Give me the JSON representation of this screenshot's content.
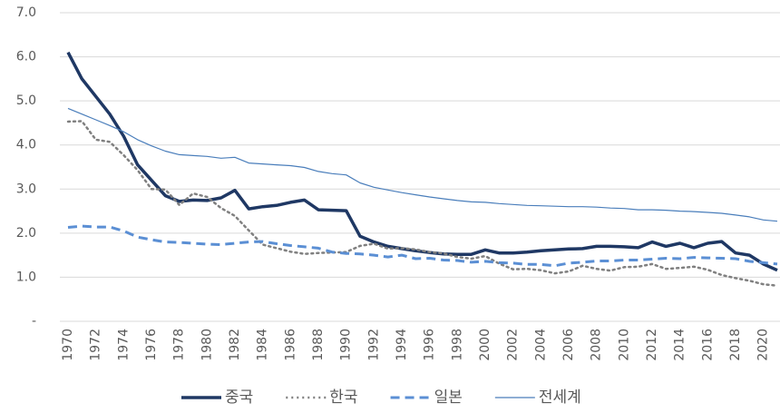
{
  "chart_data": {
    "type": "line",
    "x": [
      1970,
      1971,
      1972,
      1973,
      1974,
      1975,
      1976,
      1977,
      1978,
      1979,
      1980,
      1981,
      1982,
      1983,
      1984,
      1985,
      1986,
      1987,
      1988,
      1989,
      1990,
      1991,
      1992,
      1993,
      1994,
      1995,
      1996,
      1997,
      1998,
      1999,
      2000,
      2001,
      2002,
      2003,
      2004,
      2005,
      2006,
      2007,
      2008,
      2009,
      2010,
      2011,
      2012,
      2013,
      2014,
      2015,
      2016,
      2017,
      2018,
      2019,
      2020,
      2021
    ],
    "xlim": [
      1970,
      2021
    ],
    "xticks": [
      1970,
      1972,
      1974,
      1976,
      1978,
      1980,
      1982,
      1984,
      1986,
      1988,
      1990,
      1992,
      1994,
      1996,
      1998,
      2000,
      2002,
      2004,
      2006,
      2008,
      2010,
      2012,
      2014,
      2016,
      2018,
      2020
    ],
    "ylim": [
      0,
      7
    ],
    "yticks": [
      {
        "value": 0,
        "label": "-"
      },
      {
        "value": 1,
        "label": "1.0"
      },
      {
        "value": 2,
        "label": "2.0"
      },
      {
        "value": 3,
        "label": "3.0"
      },
      {
        "value": 4,
        "label": "4.0"
      },
      {
        "value": 5,
        "label": "5.0"
      },
      {
        "value": 6,
        "label": "6.0"
      },
      {
        "value": 7,
        "label": "7.0"
      }
    ],
    "grid": true,
    "legend": "bottom",
    "series": [
      {
        "name": "중국",
        "color": "#1f3864",
        "width": 3.5,
        "style": "solid",
        "values": [
          6.1,
          5.5,
          5.1,
          4.7,
          4.2,
          3.55,
          3.2,
          2.85,
          2.72,
          2.75,
          2.74,
          2.8,
          2.97,
          2.55,
          2.6,
          2.63,
          2.7,
          2.75,
          2.53,
          2.52,
          2.51,
          1.93,
          1.8,
          1.7,
          1.65,
          1.6,
          1.56,
          1.53,
          1.52,
          1.52,
          1.62,
          1.55,
          1.55,
          1.57,
          1.6,
          1.62,
          1.64,
          1.65,
          1.7,
          1.7,
          1.69,
          1.67,
          1.8,
          1.7,
          1.77,
          1.67,
          1.77,
          1.81,
          1.55,
          1.5,
          1.3,
          1.16
        ]
      },
      {
        "name": "한국",
        "color": "#808080",
        "width": 2.5,
        "style": "dotted",
        "values": [
          4.53,
          4.54,
          4.12,
          4.07,
          3.77,
          3.43,
          3.0,
          2.99,
          2.64,
          2.9,
          2.82,
          2.57,
          2.39,
          2.06,
          1.74,
          1.66,
          1.58,
          1.53,
          1.55,
          1.56,
          1.57,
          1.71,
          1.76,
          1.65,
          1.66,
          1.63,
          1.57,
          1.54,
          1.46,
          1.42,
          1.48,
          1.31,
          1.18,
          1.19,
          1.16,
          1.09,
          1.13,
          1.26,
          1.19,
          1.15,
          1.23,
          1.24,
          1.3,
          1.19,
          1.21,
          1.24,
          1.17,
          1.05,
          0.98,
          0.92,
          0.84,
          0.81
        ]
      },
      {
        "name": "일본",
        "color": "#5b8fd4",
        "width": 3,
        "style": "dashed",
        "values": [
          2.13,
          2.16,
          2.14,
          2.14,
          2.05,
          1.91,
          1.85,
          1.8,
          1.79,
          1.77,
          1.75,
          1.74,
          1.77,
          1.8,
          1.81,
          1.76,
          1.72,
          1.69,
          1.66,
          1.57,
          1.54,
          1.53,
          1.5,
          1.46,
          1.5,
          1.42,
          1.43,
          1.39,
          1.38,
          1.34,
          1.36,
          1.33,
          1.32,
          1.29,
          1.29,
          1.26,
          1.32,
          1.34,
          1.37,
          1.37,
          1.39,
          1.39,
          1.41,
          1.43,
          1.42,
          1.45,
          1.44,
          1.43,
          1.42,
          1.36,
          1.33,
          1.3
        ]
      },
      {
        "name": "전세계",
        "color": "#4a7ebb",
        "width": 1.2,
        "style": "solid",
        "values": [
          4.83,
          4.7,
          4.57,
          4.44,
          4.3,
          4.12,
          3.98,
          3.86,
          3.78,
          3.76,
          3.74,
          3.7,
          3.72,
          3.59,
          3.57,
          3.55,
          3.53,
          3.49,
          3.4,
          3.35,
          3.32,
          3.14,
          3.04,
          2.98,
          2.92,
          2.87,
          2.82,
          2.78,
          2.74,
          2.71,
          2.7,
          2.67,
          2.65,
          2.63,
          2.62,
          2.61,
          2.6,
          2.6,
          2.59,
          2.57,
          2.56,
          2.53,
          2.53,
          2.52,
          2.5,
          2.49,
          2.47,
          2.45,
          2.41,
          2.37,
          2.3,
          2.27
        ]
      }
    ]
  }
}
